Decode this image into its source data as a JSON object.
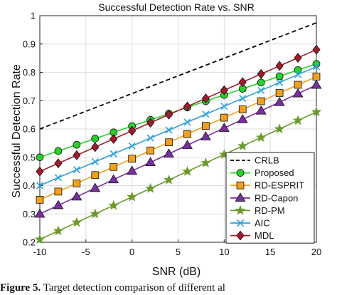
{
  "chart_data": {
    "type": "line",
    "title": "Successful Detection Rate vs. SNR",
    "xlabel": "SNR (dB)",
    "ylabel": "Successful Detection Rate",
    "xlim": [
      -10,
      20
    ],
    "ylim": [
      0.2,
      1.0
    ],
    "xticks": [
      "-10",
      "-5",
      "0",
      "5",
      "10",
      "15",
      "20"
    ],
    "yticks": [
      "0.2",
      "0.3",
      "0.4",
      "0.5",
      "0.6",
      "0.7",
      "0.8",
      "0.9",
      "1"
    ],
    "grid": true,
    "legend_position": "bottom-right",
    "x": [
      -10,
      -8,
      -6,
      -4,
      -2,
      0,
      2,
      4,
      6,
      8,
      10,
      12,
      14,
      16,
      18,
      20
    ],
    "series": [
      {
        "name": "CRLB",
        "color": "#000000",
        "style": "dashed",
        "marker": "none",
        "values": [
          0.6,
          0.625,
          0.65,
          0.675,
          0.7,
          0.725,
          0.75,
          0.775,
          0.8,
          0.825,
          0.85,
          0.875,
          0.9,
          0.925,
          0.95,
          0.975
        ]
      },
      {
        "name": "Proposed",
        "color": "#2bd12b",
        "style": "solid",
        "marker": "circle",
        "values": [
          0.5,
          0.522,
          0.544,
          0.566,
          0.588,
          0.61,
          0.632,
          0.654,
          0.676,
          0.698,
          0.72,
          0.742,
          0.764,
          0.786,
          0.808,
          0.83
        ]
      },
      {
        "name": "RD-ESPRIT",
        "color": "#f0a020",
        "style": "solid",
        "marker": "square",
        "values": [
          0.35,
          0.379,
          0.408,
          0.437,
          0.466,
          0.495,
          0.524,
          0.553,
          0.582,
          0.611,
          0.64,
          0.669,
          0.698,
          0.727,
          0.756,
          0.785
        ]
      },
      {
        "name": "RD-Capon",
        "color": "#7a2fa0",
        "style": "solid",
        "marker": "triangle",
        "values": [
          0.3,
          0.3303,
          0.3607,
          0.391,
          0.4213,
          0.4517,
          0.482,
          0.5123,
          0.5427,
          0.573,
          0.6033,
          0.6337,
          0.664,
          0.6943,
          0.7247,
          0.755
        ]
      },
      {
        "name": "RD-PM",
        "color": "#6b9a2a",
        "style": "solid",
        "marker": "star",
        "values": [
          0.21,
          0.24,
          0.27,
          0.3,
          0.33,
          0.36,
          0.39,
          0.42,
          0.45,
          0.48,
          0.51,
          0.54,
          0.57,
          0.6,
          0.63,
          0.66
        ]
      },
      {
        "name": "AIC",
        "color": "#2f9fd8",
        "style": "solid",
        "marker": "x",
        "values": [
          0.4,
          0.428,
          0.456,
          0.484,
          0.512,
          0.54,
          0.568,
          0.596,
          0.624,
          0.652,
          0.68,
          0.708,
          0.736,
          0.764,
          0.792,
          0.82
        ]
      },
      {
        "name": "MDL",
        "color": "#a01c2c",
        "style": "solid",
        "marker": "diamond",
        "values": [
          0.45,
          0.4787,
          0.5073,
          0.536,
          0.5647,
          0.5933,
          0.622,
          0.6507,
          0.6793,
          0.708,
          0.7367,
          0.7653,
          0.794,
          0.8227,
          0.8513,
          0.88
        ]
      }
    ]
  },
  "caption": {
    "label": "Figure 5.",
    "text": " Target detection comparison of different al"
  }
}
